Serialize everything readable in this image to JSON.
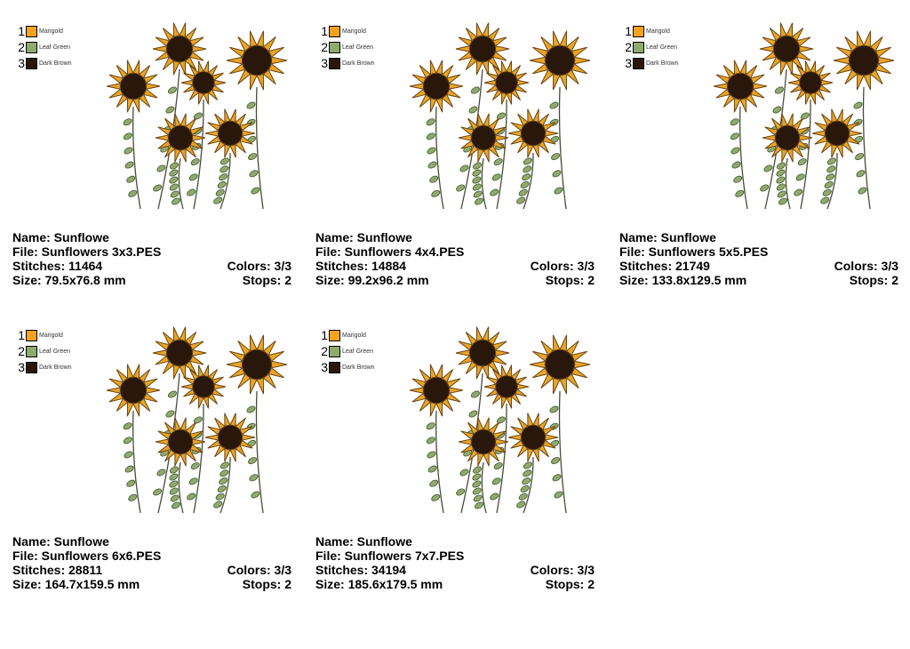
{
  "palette": [
    {
      "index": "1",
      "name": "Marigold",
      "color": "#f5a31a"
    },
    {
      "index": "2",
      "name": "Leaf Green",
      "color": "#93a86f"
    },
    {
      "index": "3",
      "name": "Dark Brown",
      "color": "#2a170c"
    }
  ],
  "designs": [
    {
      "name": "Name: Sunflowe",
      "file": "File: Sunflowers 3x3.PES",
      "stitches": "Stitches: 11464",
      "colors": "Colors: 3/3",
      "size": "Size: 79.5x76.8 mm",
      "stops": "Stops: 2"
    },
    {
      "name": "Name: Sunflowe",
      "file": "File: Sunflowers 4x4.PES",
      "stitches": "Stitches: 14884",
      "colors": "Colors: 3/3",
      "size": "Size: 99.2x96.2 mm",
      "stops": "Stops: 2"
    },
    {
      "name": "Name: Sunflowe",
      "file": "File: Sunflowers 5x5.PES",
      "stitches": "Stitches: 21749",
      "colors": "Colors: 3/3",
      "size": "Size: 133.8x129.5 mm",
      "stops": "Stops: 2"
    },
    {
      "name": "Name: Sunflowe",
      "file": "File: Sunflowers 6x6.PES",
      "stitches": "Stitches: 28811",
      "colors": "Colors: 3/3",
      "size": "Size: 164.7x159.5 mm",
      "stops": "Stops: 2"
    },
    {
      "name": "Name: Sunflowe",
      "file": "File: Sunflowers 7x7.PES",
      "stitches": "Stitches: 34194",
      "colors": "Colors: 3/3",
      "size": "Size: 185.6x179.5 mm",
      "stops": "Stops: 2"
    }
  ]
}
